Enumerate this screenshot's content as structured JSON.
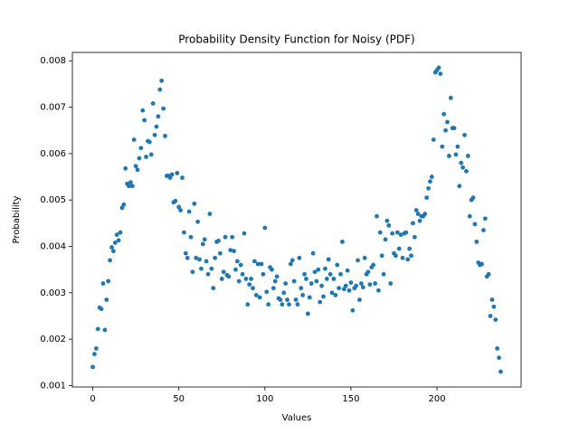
{
  "chart_data": {
    "type": "scatter",
    "title": "Probability Density Function for Noisy (PDF)",
    "x_label": "Values",
    "y_label": "Probability",
    "color": "#1f77b4",
    "xlim": [
      -11.85,
      248.85
    ],
    "xticks": [
      0,
      50,
      100,
      150,
      200
    ],
    "ylim": [
      0.00097,
      0.00818
    ],
    "yticks": [
      0.001,
      0.002,
      0.003,
      0.004,
      0.005,
      0.006,
      0.007,
      0.008
    ],
    "values": [
      0.0014,
      0.00168,
      0.0018,
      0.00222,
      0.00268,
      0.00265,
      0.0032,
      0.0022,
      0.00285,
      0.00325,
      0.0037,
      0.00398,
      0.0039,
      0.00408,
      0.00425,
      0.00413,
      0.0043,
      0.00483,
      0.0049,
      0.00568,
      0.00535,
      0.0053,
      0.00538,
      0.0053,
      0.0063,
      0.00573,
      0.00565,
      0.0059,
      0.00612,
      0.00693,
      0.00672,
      0.00593,
      0.00627,
      0.00625,
      0.00598,
      0.00708,
      0.0064,
      0.00658,
      0.0068,
      0.00738,
      0.00757,
      0.00697,
      0.00638,
      0.00552,
      0.00552,
      0.00548,
      0.00555,
      0.00495,
      0.00498,
      0.00558,
      0.00485,
      0.00478,
      0.00548,
      0.0043,
      0.00385,
      0.00375,
      0.00475,
      0.0042,
      0.00345,
      0.00492,
      0.00375,
      0.00453,
      0.00372,
      0.00352,
      0.00405,
      0.00415,
      0.00368,
      0.0034,
      0.0047,
      0.00352,
      0.0031,
      0.00375,
      0.0041,
      0.00412,
      0.00385,
      0.0033,
      0.00345,
      0.0042,
      0.00338,
      0.00335,
      0.00392,
      0.0042,
      0.0039,
      0.0035,
      0.00368,
      0.00325,
      0.0036,
      0.0034,
      0.00428,
      0.0033,
      0.00275,
      0.00318,
      0.0033,
      0.0031,
      0.00368,
      0.00295,
      0.00362,
      0.0029,
      0.00362,
      0.0034,
      0.0044,
      0.00302,
      0.00275,
      0.00355,
      0.0035,
      0.0031,
      0.00325,
      0.00335,
      0.00288,
      0.00285,
      0.00275,
      0.003,
      0.0032,
      0.00285,
      0.00275,
      0.00362,
      0.0037,
      0.00325,
      0.00285,
      0.00275,
      0.00375,
      0.0031,
      0.00295,
      0.0034,
      0.0033,
      0.00255,
      0.0029,
      0.0032,
      0.00385,
      0.00345,
      0.00325,
      0.0035,
      0.0028,
      0.00315,
      0.00292,
      0.00352,
      0.0033,
      0.00372,
      0.0034,
      0.003,
      0.0033,
      0.00295,
      0.0036,
      0.0031,
      0.0034,
      0.0041,
      0.00308,
      0.00315,
      0.00348,
      0.00305,
      0.00322,
      0.00262,
      0.0031,
      0.00315,
      0.0037,
      0.00285,
      0.0032,
      0.00312,
      0.00375,
      0.0034,
      0.00345,
      0.00318,
      0.00355,
      0.0036,
      0.0032,
      0.00465,
      0.00305,
      0.0043,
      0.0038,
      0.0034,
      0.00415,
      0.00455,
      0.00445,
      0.0032,
      0.00428,
      0.00385,
      0.0038,
      0.0043,
      0.00395,
      0.00425,
      0.00375,
      0.00428,
      0.0043,
      0.00372,
      0.00395,
      0.0038,
      0.0045,
      0.0042,
      0.00478,
      0.0047,
      0.00455,
      0.00465,
      0.00465,
      0.0047,
      0.00505,
      0.00525,
      0.0054,
      0.0055,
      0.0063,
      0.00775,
      0.0078,
      0.00785,
      0.00772,
      0.00615,
      0.00685,
      0.0065,
      0.00668,
      0.00595,
      0.0072,
      0.00655,
      0.00655,
      0.00598,
      0.00615,
      0.0053,
      0.0058,
      0.0057,
      0.0064,
      0.00562,
      0.00595,
      0.00465,
      0.005,
      0.00505,
      0.00448,
      0.0041,
      0.00365,
      0.0036,
      0.00362,
      0.00435,
      0.0046,
      0.00335,
      0.0034,
      0.0025,
      0.00285,
      0.0027,
      0.00242,
      0.0018,
      0.0016,
      0.0013
    ]
  }
}
